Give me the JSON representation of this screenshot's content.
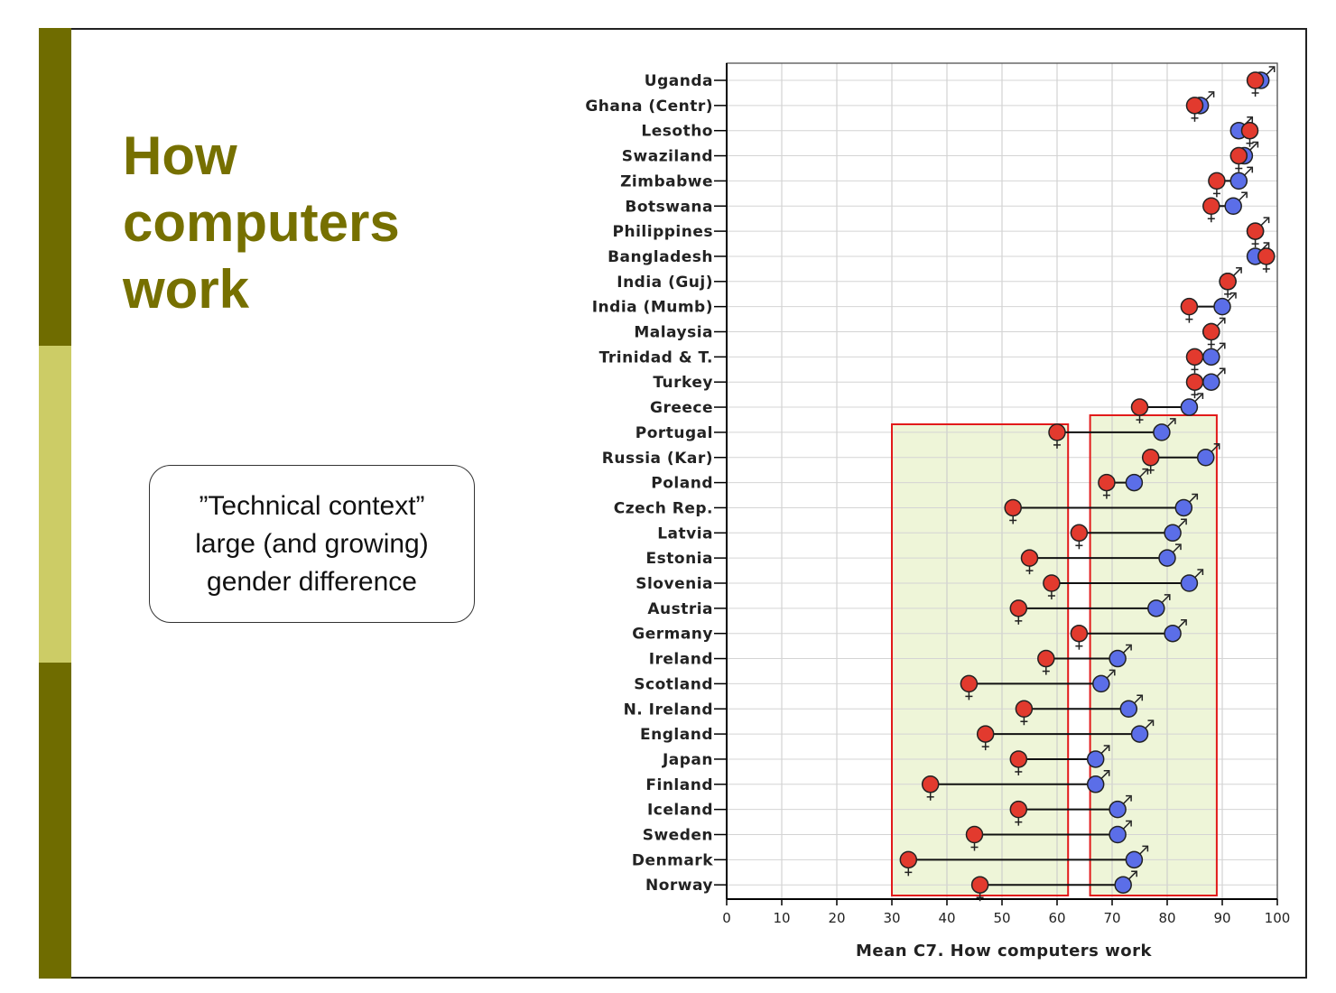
{
  "slide": {
    "title_lines": [
      "How",
      "computers",
      "work"
    ],
    "callout_lines": [
      "”Technical context”",
      "large (and growing)",
      "gender difference"
    ]
  },
  "colors": {
    "accent_dark": "#6f6c00",
    "accent_light": "#cccc66",
    "title": "#767000",
    "male": "#5b6ee8",
    "female": "#e23a2e",
    "highlight_box": "#e21a1a",
    "highlight_fill": "#eef5d8"
  },
  "icons": {
    "male": "male-symbol-icon",
    "female": "female-symbol-icon"
  },
  "chart_data": {
    "type": "dumbbell",
    "xlabel": "Mean C7. How computers work",
    "ylabel": "",
    "xlim": [
      0,
      100
    ],
    "xticks": [
      0,
      10,
      20,
      30,
      40,
      50,
      60,
      70,
      80,
      90,
      100
    ],
    "grid": true,
    "highlight_x_ranges": [
      [
        30,
        62
      ],
      [
        66,
        89
      ]
    ],
    "series": [
      {
        "name": "female",
        "symbol": "♀"
      },
      {
        "name": "male",
        "symbol": "♂"
      }
    ],
    "categories": [
      "Uganda",
      "Ghana (Centr)",
      "Lesotho",
      "Swaziland",
      "Zimbabwe",
      "Botswana",
      "Philippines",
      "Bangladesh",
      "India (Guj)",
      "India (Mumb)",
      "Malaysia",
      "Trinidad & T.",
      "Turkey",
      "Greece",
      "Portugal",
      "Russia (Kar)",
      "Poland",
      "Czech Rep.",
      "Latvia",
      "Estonia",
      "Slovenia",
      "Austria",
      "Germany",
      "Ireland",
      "Scotland",
      "N. Ireland",
      "England",
      "Japan",
      "Finland",
      "Iceland",
      "Sweden",
      "Denmark",
      "Norway"
    ],
    "female": [
      96,
      85,
      95,
      93,
      89,
      88,
      96,
      98,
      91,
      84,
      88,
      85,
      85,
      75,
      60,
      77,
      69,
      52,
      64,
      55,
      59,
      53,
      64,
      58,
      44,
      54,
      47,
      53,
      37,
      53,
      45,
      33,
      46
    ],
    "male": [
      97,
      86,
      93,
      94,
      93,
      92,
      96,
      96,
      91,
      90,
      88,
      88,
      88,
      84,
      79,
      87,
      74,
      83,
      81,
      80,
      84,
      78,
      81,
      71,
      68,
      73,
      75,
      67,
      67,
      71,
      71,
      74,
      72
    ]
  }
}
